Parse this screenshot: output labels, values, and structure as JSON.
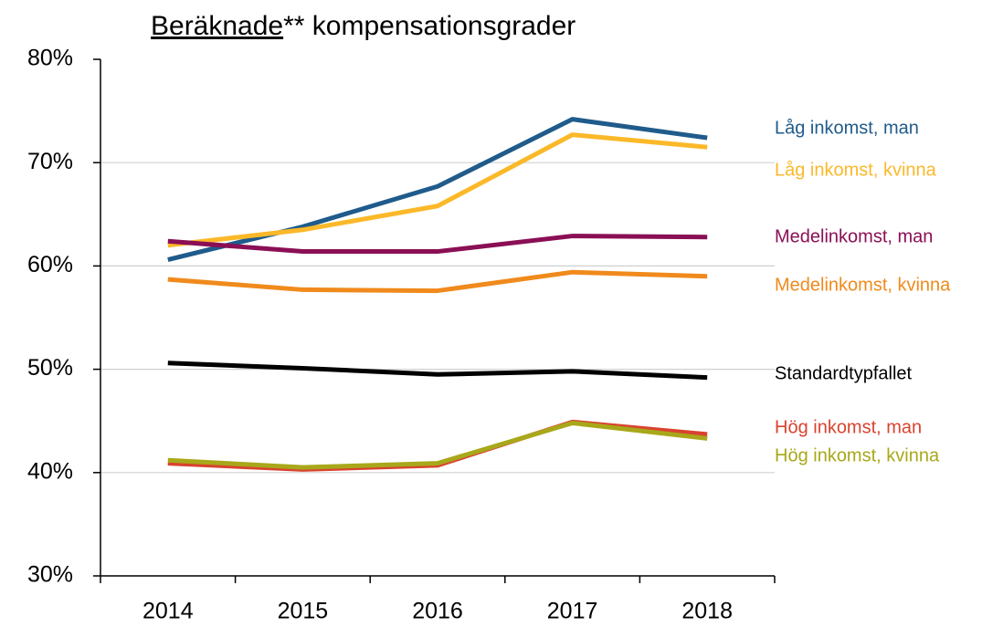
{
  "chart_data": {
    "type": "line",
    "title": {
      "underlined": "Beräknade",
      "rest": "** kompensationsgrader"
    },
    "categories": [
      "2014",
      "2015",
      "2016",
      "2017",
      "2018"
    ],
    "ylim": [
      30,
      80
    ],
    "yticks": [
      {
        "value": 30,
        "label": "30%"
      },
      {
        "value": 40,
        "label": "40%"
      },
      {
        "value": 50,
        "label": "50%"
      },
      {
        "value": 60,
        "label": "60%"
      },
      {
        "value": 70,
        "label": "70%"
      },
      {
        "value": 80,
        "label": "80%"
      }
    ],
    "grid": true,
    "series": [
      {
        "name": "Låg inkomst, man",
        "color": "#1f5b8b",
        "values": [
          60.6,
          63.8,
          67.7,
          74.2,
          72.4
        ]
      },
      {
        "name": "Låg inkomst, kvinna",
        "color": "#fbb829",
        "values": [
          62.0,
          63.5,
          65.8,
          72.7,
          71.5
        ]
      },
      {
        "name": "Medelinkomst, man",
        "color": "#8a0f55",
        "values": [
          62.4,
          61.4,
          61.4,
          62.9,
          62.8
        ]
      },
      {
        "name": "Medelinkomst, kvinna",
        "color": "#f08a1c",
        "values": [
          58.7,
          57.7,
          57.6,
          59.4,
          59.0
        ]
      },
      {
        "name": "Standardtypfallet",
        "color": "#000000",
        "values": [
          50.6,
          50.1,
          49.5,
          49.8,
          49.2
        ]
      },
      {
        "name": "Hög inkomst, man",
        "color": "#d9432f",
        "values": [
          40.9,
          40.3,
          40.7,
          44.9,
          43.7
        ]
      },
      {
        "name": "Hög inkomst, kvinna",
        "color": "#a8a81a",
        "values": [
          41.2,
          40.5,
          40.9,
          44.8,
          43.3
        ]
      }
    ]
  }
}
